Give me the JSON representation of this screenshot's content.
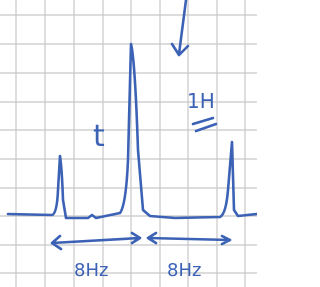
{
  "annotations": {
    "multiplicity": "t",
    "integration": "1H",
    "spacing_left": "8Hz",
    "spacing_right": "8Hz"
  }
}
